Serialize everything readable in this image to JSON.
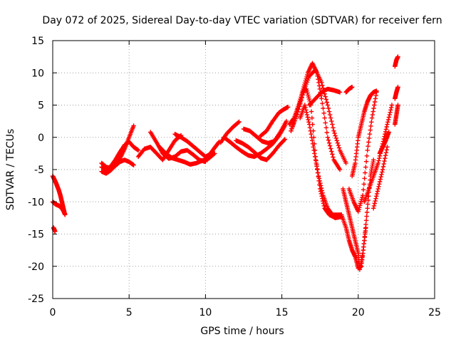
{
  "chart_data": {
    "type": "scatter",
    "title": "Day 072 of 2025, Sidereal Day-to-day VTEC variation (SDTVAR) for receiver fern",
    "xlabel": "GPS time / hours",
    "ylabel": "SDTVAR / TECUs",
    "xlim": [
      0,
      25
    ],
    "ylim": [
      -25,
      15
    ],
    "xticks": [
      "0",
      "5",
      "10",
      "15",
      "20",
      "25"
    ],
    "yticks": [
      "-25",
      "-20",
      "-15",
      "-10",
      "-5",
      "0",
      "5",
      "10",
      "15"
    ],
    "grid": true,
    "marker": "plus",
    "color": "#ff0000",
    "series": [
      {
        "x": [
          0.0,
          0.1,
          0.2,
          0.3,
          0.4,
          0.5,
          0.6,
          0.7,
          0.8
        ],
        "y": [
          -6.0,
          -6.5,
          -7.0,
          -7.6,
          -8.2,
          -9.0,
          -10.0,
          -11.0,
          -12.0
        ]
      },
      {
        "x": [
          0.0,
          0.1,
          0.2,
          0.3,
          0.4,
          0.5,
          0.6,
          0.7,
          0.8
        ],
        "y": [
          -10.0,
          -10.2,
          -10.4,
          -10.5,
          -10.6,
          -10.8,
          -11.0,
          -11.4,
          -11.9
        ]
      },
      {
        "x": [
          0.05,
          0.1,
          0.15
        ],
        "y": [
          -14.0,
          -14.3,
          -14.6
        ]
      },
      {
        "x": [
          3.2,
          3.5,
          3.8,
          4.1,
          4.4,
          4.7,
          5.0,
          5.3
        ],
        "y": [
          -4.0,
          -4.6,
          -4.8,
          -4.3,
          -3.3,
          -1.8,
          0.0,
          1.8
        ]
      },
      {
        "x": [
          3.2,
          3.5,
          3.8,
          4.1,
          4.4,
          4.7,
          5.0,
          5.3,
          5.6
        ],
        "y": [
          -4.6,
          -5.0,
          -4.5,
          -3.5,
          -2.3,
          -1.2,
          -0.7,
          -1.5,
          -2.0
        ]
      },
      {
        "x": [
          3.2,
          3.5,
          3.8,
          4.1,
          4.4,
          4.7,
          5.0,
          5.3
        ],
        "y": [
          -5.3,
          -5.6,
          -5.1,
          -4.4,
          -3.8,
          -3.5,
          -3.8,
          -4.3
        ]
      },
      {
        "x": [
          5.6,
          6.0,
          6.4,
          6.8,
          7.2,
          7.6,
          8.0,
          8.4
        ],
        "y": [
          -3.0,
          -1.8,
          -1.5,
          -2.5,
          -3.5,
          -2.0,
          -0.5,
          0.3
        ]
      },
      {
        "x": [
          6.4,
          6.8,
          7.2,
          7.6,
          8.0,
          8.4,
          8.8,
          9.2,
          9.6,
          10.0
        ],
        "y": [
          0.8,
          -0.8,
          -2.5,
          -3.3,
          -3.0,
          -2.2,
          -2.0,
          -2.7,
          -3.5,
          -3.8
        ]
      },
      {
        "x": [
          7.0,
          7.4,
          7.8,
          8.2,
          8.6,
          9.0,
          9.4,
          9.8,
          10.2,
          10.6
        ],
        "y": [
          -1.5,
          -2.5,
          -3.2,
          -3.5,
          -3.8,
          -4.2,
          -4.0,
          -3.6,
          -3.3,
          -2.5
        ]
      },
      {
        "x": [
          8.0,
          8.4,
          8.8,
          9.2,
          9.6,
          10.0,
          10.4
        ],
        "y": [
          0.5,
          0.0,
          -0.6,
          -1.4,
          -2.2,
          -3.0,
          -2.5
        ]
      },
      {
        "x": [
          10.0,
          10.3,
          10.6,
          10.9
        ],
        "y": [
          -3.6,
          -2.6,
          -1.6,
          -0.7
        ]
      },
      {
        "x": [
          11.0,
          11.4,
          11.8,
          12.2
        ],
        "y": [
          -0.8,
          0.6,
          1.6,
          2.4
        ]
      },
      {
        "x": [
          11.2,
          11.6,
          12.0,
          12.4,
          12.8,
          13.2,
          13.6,
          14.0,
          14.4,
          14.8,
          15.2
        ],
        "y": [
          0.0,
          -0.7,
          -1.5,
          -2.2,
          -2.8,
          -3.0,
          -2.5,
          -1.8,
          -1.0,
          0.2,
          1.8
        ]
      },
      {
        "x": [
          12.0,
          12.4,
          12.8,
          13.2,
          13.6,
          14.0,
          14.4,
          14.8,
          15.2
        ],
        "y": [
          -0.5,
          -0.9,
          -1.5,
          -2.3,
          -3.2,
          -3.5,
          -2.5,
          -1.3,
          -0.3
        ]
      },
      {
        "x": [
          12.5,
          12.9,
          13.3,
          13.7,
          14.1,
          14.5,
          14.9,
          15.3
        ],
        "y": [
          1.3,
          1.0,
          0.2,
          -0.6,
          -0.9,
          -0.6,
          0.8,
          2.5
        ]
      },
      {
        "x": [
          13.6,
          14.0,
          14.4,
          14.8,
          15.1,
          15.4
        ],
        "y": [
          0.2,
          1.0,
          2.5,
          3.8,
          4.3,
          4.7
        ]
      },
      {
        "x": [
          15.5,
          15.8,
          16.1,
          16.4,
          16.7,
          17.0,
          17.3,
          17.6,
          18.0,
          18.4,
          18.8
        ],
        "y": [
          2.0,
          3.0,
          5.0,
          7.5,
          10.0,
          11.5,
          10.0,
          6.0,
          0.0,
          -3.5,
          -5.0
        ]
      },
      {
        "x": [
          15.6,
          16.0,
          16.4,
          16.8,
          17.2,
          17.6,
          18.0,
          18.4,
          18.8,
          19.2
        ],
        "y": [
          1.0,
          4.0,
          7.0,
          9.5,
          10.5,
          8.5,
          5.0,
          1.0,
          -2.0,
          -4.0
        ]
      },
      {
        "x": [
          16.8,
          17.2,
          17.6,
          18.0,
          18.4,
          18.8
        ],
        "y": [
          5.0,
          6.0,
          7.0,
          7.5,
          7.3,
          7.0
        ]
      },
      {
        "x": [
          15.6,
          16.0,
          16.4,
          16.6,
          16.9,
          17.2,
          17.5,
          17.8,
          18.1,
          18.5,
          18.9
        ],
        "y": [
          1.0,
          3.5,
          7.0,
          7.5,
          5.0,
          -3.0,
          -8.0,
          -11.0,
          -12.0,
          -12.5,
          -12.3
        ]
      },
      {
        "x": [
          16.2,
          16.5,
          16.8,
          17.1,
          17.4,
          17.7,
          18.0,
          18.3,
          18.6,
          18.9
        ],
        "y": [
          3.0,
          5.0,
          2.0,
          -2.0,
          -6.0,
          -9.0,
          -11.0,
          -12.0,
          -12.0,
          -12.0
        ]
      },
      {
        "x": [
          18.9,
          19.2,
          19.4,
          19.6,
          19.8,
          20.0,
          20.2,
          20.4,
          20.6,
          20.8,
          21.0
        ],
        "y": [
          -12.0,
          -14.0,
          -16.0,
          -17.5,
          -18.5,
          -20.3,
          -20.0,
          -16.0,
          -11.0,
          -6.0,
          -3.5
        ]
      },
      {
        "x": [
          19.0,
          19.2,
          19.4,
          19.6,
          19.8,
          20.0,
          20.1,
          20.3,
          20.5
        ],
        "y": [
          -8.0,
          -10.0,
          -12.0,
          -14.0,
          -16.0,
          -18.0,
          -20.5,
          -18.0,
          -14.0
        ]
      },
      {
        "x": [
          19.2,
          19.4,
          19.6
        ],
        "y": [
          7.0,
          7.5,
          7.8
        ]
      },
      {
        "x": [
          19.4,
          19.7,
          20.0,
          20.3,
          20.6,
          20.9,
          21.2
        ],
        "y": [
          -8.0,
          -10.0,
          -11.5,
          -9.0,
          -2.0,
          3.0,
          7.0
        ]
      },
      {
        "x": [
          19.6,
          19.8,
          20.0,
          20.2,
          20.4,
          20.6,
          20.8,
          21.0,
          21.2
        ],
        "y": [
          -6.0,
          -4.0,
          0.0,
          2.0,
          4.0,
          5.5,
          6.5,
          7.0,
          7.2
        ]
      },
      {
        "x": [
          20.4,
          20.7,
          21.0,
          21.3,
          21.6,
          21.9,
          22.2
        ],
        "y": [
          -10.0,
          -8.0,
          -6.0,
          -4.0,
          -1.0,
          2.0,
          5.0
        ]
      },
      {
        "x": [
          21.0,
          21.3,
          21.6,
          21.9
        ],
        "y": [
          -11.0,
          -8.0,
          -5.0,
          -1.5
        ]
      },
      {
        "x": [
          21.4,
          21.6,
          21.8,
          22.0
        ],
        "y": [
          -2.5,
          -1.5,
          -0.5,
          0.8
        ]
      },
      {
        "x": [
          22.4,
          22.5,
          22.6
        ],
        "y": [
          2.0,
          3.5,
          5.0
        ]
      },
      {
        "x": [
          22.4,
          22.5,
          22.6
        ],
        "y": [
          6.0,
          7.0,
          7.8
        ]
      },
      {
        "x": [
          22.4,
          22.5,
          22.6
        ],
        "y": [
          11.0,
          12.0,
          12.5
        ]
      }
    ]
  }
}
